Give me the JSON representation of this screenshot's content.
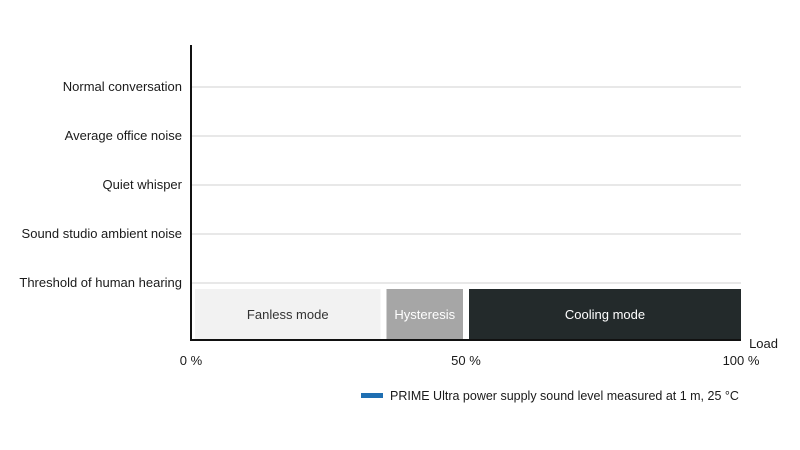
{
  "chart_data": {
    "type": "bar",
    "orientation": "horizontal",
    "y_categories": [
      "Normal conversation",
      "Average office noise",
      "Quiet whisper",
      "Sound studio ambient noise",
      "Threshold of human hearing"
    ],
    "x_ticks": [
      {
        "value": 0,
        "label": "0 %"
      },
      {
        "value": 50,
        "label": "50 %"
      },
      {
        "value": 100,
        "label": "100 %"
      }
    ],
    "xlabel": "Load",
    "xlim": [
      0,
      100
    ],
    "grid": "horizontal",
    "bands": [
      {
        "label": "Fanless mode",
        "start": 0,
        "end": 35,
        "color": "#f2f2f2",
        "text_color": "#333333"
      },
      {
        "label": "Hysteresis",
        "start": 35,
        "end": 50,
        "color": "#a6a6a6",
        "text_color": "#ffffff"
      },
      {
        "label": "Cooling mode",
        "start": 50,
        "end": 100,
        "color": "#232a2b",
        "text_color": "#ffffff"
      }
    ],
    "series": [
      {
        "name": "PRIME Ultra power supply sound level measured at 1 m, 25 °C",
        "color": "#1f6fb2",
        "values": []
      }
    ],
    "legend_position": "bottom-right"
  }
}
